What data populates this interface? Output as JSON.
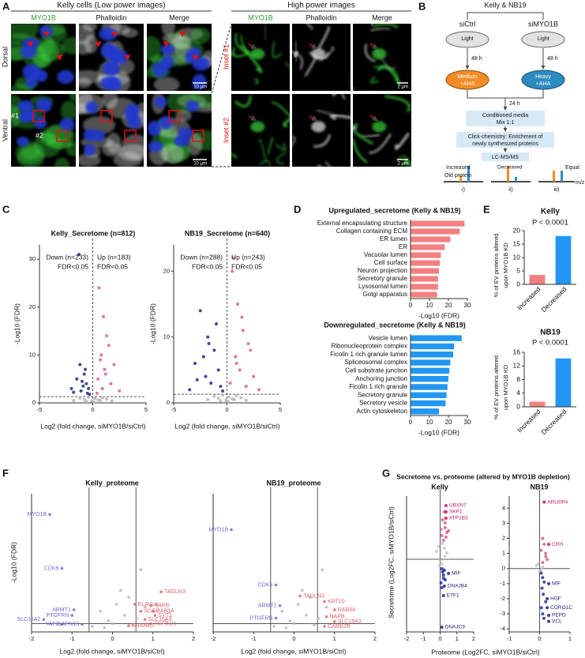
{
  "panel_labels": [
    "A",
    "B",
    "C",
    "D",
    "E",
    "F",
    "G"
  ],
  "panel_a": {
    "title_low": "Kelly cells (Low power images)",
    "title_high": "High power images",
    "columns": [
      "MYO1B",
      "Phalloidin",
      "Merge"
    ],
    "rows": [
      "Dorsal",
      "Ventral"
    ],
    "insets": [
      "Inset #1",
      "Inset #2"
    ],
    "markers": [
      "#1",
      "#2"
    ],
    "scale_low": "10 μm",
    "scale_high": "2 μm"
  },
  "panel_b": {
    "cells": "Kelly & NB19",
    "conditions": [
      "siCtrl",
      "siMYO1B"
    ],
    "light": "Light",
    "time_1": "48 h",
    "medium": [
      "Medium",
      "+AHA"
    ],
    "heavy": [
      "Heavy",
      "+AHA"
    ],
    "time_2": "24 h",
    "media": [
      "Conditioned media",
      "Mix 1:1"
    ],
    "click": [
      "Click-chemistry: Enrichment of",
      "newly synthesized proteins"
    ],
    "ms": "LC-MS/MS",
    "increased": "Increased",
    "old_protein": "Old protein",
    "decreased": "Decreased",
    "equal": "Equal",
    "mz": "m/z",
    "cases": [
      "i)",
      "ii)",
      "iii)"
    ]
  },
  "panel_g": {
    "title": "Secretome vs. proteome (altered by MYO1B depletion)",
    "xlabel": "Proteome (Log2FC, siMYO1B/siCtrl)",
    "ylabel": "Secretome (Log2FC, siMYO1B/siCtrl)"
  },
  "chart_data": [
    {
      "type": "scatter",
      "title": "Kelly_Secretome (n=812)",
      "xlabel": "Log2 (fold change, siMYO1B/siCtrl)",
      "ylabel": "-Log10 (FDR)",
      "annotations": [
        "Down (n=233)",
        "FDR<0.05",
        "Up (n=183)",
        "FDR<0.05"
      ],
      "xlim": [
        -5,
        5
      ],
      "xticks": [
        -5,
        0,
        5
      ],
      "ylim": [
        0,
        33
      ],
      "yticks": [
        0,
        10,
        20,
        30
      ],
      "hlines": [
        1.3
      ],
      "vlines": [
        0
      ],
      "line_style": "dashed",
      "series": [
        {
          "color": "#b5b5b5",
          "x": [
            -1.2,
            -0.8,
            -0.4,
            -0.1,
            0.2,
            0.5,
            0.9,
            1.3,
            -1.8,
            1.8,
            0.1,
            -0.6,
            0.7
          ],
          "values": [
            1.0,
            0.7,
            1.2,
            0.4,
            0.9,
            0.6,
            1.1,
            0.8,
            0.5,
            0.4,
            0.2,
            0.3,
            0.5
          ]
        },
        {
          "color": "#1f2a80",
          "x": [
            -1.3,
            -1.2,
            -0.8,
            -1.5,
            -0.6,
            -2.0,
            -0.9,
            -1.1,
            -0.5,
            -0.7,
            -1.8,
            -0.4,
            -1.0,
            -0.3
          ],
          "values": [
            31,
            8,
            6,
            5,
            4,
            3,
            3.5,
            2.5,
            2,
            7,
            2.2,
            3,
            4.5,
            1.8
          ]
        },
        {
          "color": "#d6608a",
          "x": [
            0.6,
            1.0,
            1.5,
            0.8,
            2.0,
            1.2,
            0.5,
            1.7,
            0.9,
            2.5,
            1.3,
            0.4,
            1.1,
            0.7
          ],
          "values": [
            24,
            18,
            12,
            10,
            8,
            6,
            5,
            4,
            3,
            2.5,
            14,
            2,
            7,
            9
          ]
        }
      ]
    },
    {
      "type": "scatter",
      "title": "NB19_Secretome (n=640)",
      "xlabel": "Log2 (fold change, siMYO1B/siCtrl)",
      "ylabel": "-Log10 (FDR)",
      "annotations": [
        "Down (n=288)",
        "FDR<0.05",
        "Up (n=243)",
        "FDR<0.05"
      ],
      "xlim": [
        -5,
        5
      ],
      "xticks": [
        -5,
        0,
        5
      ],
      "ylim": [
        0,
        24
      ],
      "yticks": [
        0,
        10,
        20
      ],
      "hlines": [
        1.3
      ],
      "vlines": [
        0
      ],
      "line_style": "dashed",
      "series": [
        {
          "color": "#b5b5b5",
          "x": [
            -1.2,
            -0.8,
            -0.4,
            -0.1,
            0.2,
            0.5,
            0.9,
            1.3,
            -1.8,
            1.8,
            0.1,
            -0.6,
            0.7
          ],
          "values": [
            1.0,
            0.7,
            1.2,
            0.4,
            0.9,
            0.6,
            1.1,
            0.8,
            0.5,
            0.4,
            0.2,
            0.3,
            0.5
          ]
        },
        {
          "color": "#1f2a80",
          "x": [
            -2.5,
            -1.8,
            -1.2,
            -3,
            -0.8,
            -2,
            -1.5,
            -0.6,
            -3.5,
            -1,
            -2.2,
            -0.4,
            -1.7,
            -2.8
          ],
          "values": [
            14,
            10,
            8,
            6,
            5,
            4,
            3,
            2.5,
            2,
            12,
            7,
            1.8,
            9,
            3.5
          ]
        },
        {
          "color": "#d6608a",
          "x": [
            0.5,
            1,
            1.5,
            2,
            0.8,
            1.2,
            2.5,
            0.3,
            1.8,
            3,
            0.6,
            1.4,
            0.9,
            2.2
          ],
          "values": [
            20,
            15,
            11,
            9,
            7,
            5,
            4,
            3,
            2.5,
            2,
            22,
            13,
            6,
            8
          ]
        }
      ]
    },
    {
      "type": "barh",
      "title": "Upregulated_secretome (Kelly & NB19)",
      "xlabel": "-Log10 (FDR)",
      "categories": [
        "External encapsulating structure",
        "Collagen containing ECM",
        "ER lumen",
        "ER",
        "Vacuolar lumen",
        "Cell surface",
        "Neuron projection",
        "Secretory granule",
        "Lysosomal lumen",
        "Golgi apparatus"
      ],
      "values": [
        28.5,
        26,
        21,
        18,
        16,
        15.5,
        15,
        14.5,
        14.5,
        14
      ],
      "color": "#f28080",
      "xlim": [
        0,
        30
      ],
      "xticks": [
        0,
        10,
        20,
        30
      ]
    },
    {
      "type": "barh",
      "title": "Downregulated_secretome (Kelly & NB19)",
      "xlabel": "-Log10 (FDR)",
      "categories": [
        "Vesicle lumen",
        "Ribonucleoprotein complex",
        "Ficolin 1 rich granule lumen",
        "Spliceosomal complex",
        "Cell substrate junction",
        "Anchoring junction",
        "Ficolin 1 rich granule",
        "Secretory granule",
        "Secretory vesicle",
        "Actin cytoskeleton"
      ],
      "values": [
        27,
        23,
        22.5,
        21,
        20.5,
        20,
        19.5,
        19,
        18.5,
        15
      ],
      "color": "#2196f3",
      "xlim": [
        0,
        30
      ],
      "xticks": [
        0,
        10,
        20,
        30
      ]
    },
    {
      "type": "bar",
      "title": "Kelly",
      "annotations": [
        "P < 0.0001"
      ],
      "ylabel": [
        "% of EV proteins altered",
        "upon MYO1B KD"
      ],
      "categories": [
        "Increased",
        "Decreased"
      ],
      "values": [
        3.5,
        18
      ],
      "colors": [
        "#f28080",
        "#2196f3"
      ],
      "ylim": [
        0,
        20
      ],
      "yticks": [
        0,
        5,
        10,
        15,
        20
      ]
    },
    {
      "type": "bar",
      "title": "NB19",
      "annotations": [
        "P < 0.0001"
      ],
      "ylabel": [
        "% of EV proteins altered",
        "upon MYO1B KD"
      ],
      "categories": [
        "Increased",
        "Decreased"
      ],
      "values": [
        1.5,
        14.2
      ],
      "colors": [
        "#f28080",
        "#2196f3"
      ],
      "ylim": [
        0,
        16
      ],
      "yticks": [
        0,
        4,
        8,
        12,
        16
      ]
    },
    {
      "type": "scatter",
      "title": "Kelly_proteome",
      "xlabel": "Log2 (fold change, siMYO1B/siCtrl)",
      "ylabel": "-Log10 (FDR)",
      "xlim": [
        -2,
        2
      ],
      "xticks": [
        -2,
        -1,
        0,
        1,
        2
      ],
      "ylim": [
        0,
        10
      ],
      "hlines": [
        0.6
      ],
      "vlines": [
        -0.58,
        0.58
      ],
      "line_style": "solid",
      "series": [
        {
          "color": "#b5b5b5",
          "x": [
            -0.3,
            -0.1,
            0.1,
            0.3,
            0.5,
            -0.5,
            0.2,
            0.4,
            0.6,
            0.8,
            -0.2,
            0.0,
            0.7
          ],
          "values": [
            1.5,
            0.8,
            2.0,
            1.2,
            0.5,
            0.4,
            3.0,
            2.5,
            1.0,
            1.8,
            0.3,
            0.6,
            4.5
          ]
        },
        {
          "color": "#6b6bd6",
          "x": [
            -1.55,
            -1.25,
            -0.95,
            -1.0,
            -1.7,
            -1.25,
            -0.75
          ],
          "values": [
            8.5,
            4.6,
            1.6,
            1.2,
            0.9,
            0.55,
            0.55
          ],
          "labels": [
            "MYO1B",
            "CDK6",
            "ARMT1",
            "PTGFRN",
            "SLC35A2",
            "YAF2",
            "CAPN13"
          ]
        },
        {
          "color": "#e0606a",
          "x": [
            1.2,
            0.55,
            0.95,
            1.0,
            0.7,
            1.05,
            0.8,
            0.95,
            0.4
          ],
          "values": [
            2.9,
            2.0,
            1.9,
            1.5,
            1.5,
            1.2,
            0.9,
            0.6,
            0.45
          ],
          "labels": [
            "TAGLN3",
            "ELAVL4",
            "NAPB",
            "RAB3A",
            "SCG2",
            "SYT1",
            "SLC16A3",
            "TGFB1I1",
            "SHANK2"
          ]
        }
      ]
    },
    {
      "type": "scatter",
      "title": "NB19_proteome",
      "xlabel": "Log2 (fold change, siMYO1B/siCtrl)",
      "xlim": [
        -2,
        2
      ],
      "xticks": [
        -2,
        -1,
        0,
        1,
        2
      ],
      "ylim": [
        0,
        10
      ],
      "hlines": [
        0.6
      ],
      "vlines": [
        -0.58,
        0.58
      ],
      "line_style": "solid",
      "series": [
        {
          "color": "#b5b5b5",
          "x": [
            -0.3,
            -0.1,
            0.1,
            0.3,
            0.5,
            -0.5,
            0.2,
            0.4,
            0.6,
            0.8,
            -0.2,
            0.0,
            0.7
          ],
          "values": [
            1.5,
            0.8,
            2.0,
            1.2,
            0.5,
            0.4,
            3.0,
            2.5,
            1.0,
            1.8,
            0.3,
            0.6,
            4.5
          ]
        },
        {
          "color": "#6b6bd6",
          "x": [
            -1.55,
            -0.45,
            -0.35,
            -0.45
          ],
          "values": [
            7.4,
            3.4,
            1.9,
            1.0
          ],
          "labels": [
            "MYO1B",
            "CDK6",
            "ARMT1",
            "PTGFRN"
          ]
        },
        {
          "color": "#e0606a",
          "x": [
            0.15,
            0.75,
            1.0,
            0.8,
            1.0,
            0.75
          ],
          "values": [
            2.6,
            2.2,
            1.6,
            1.1,
            0.75,
            0.4
          ],
          "labels": [
            "TAGLN3",
            "KRT10",
            "RAB3A",
            "NAPB",
            "SLC16A3",
            "CAMK2B"
          ]
        }
      ]
    },
    {
      "type": "scatter",
      "title": "Kelly",
      "xlim": [
        -2,
        2
      ],
      "xticks": [
        -2,
        -1,
        0,
        1,
        2
      ],
      "ylim": [
        -4.6,
        4
      ],
      "hlines": [
        0
      ],
      "vlines": [
        0
      ],
      "line_style": "solid",
      "series": [
        {
          "color": "#c8c8c8",
          "x": [
            -0.2,
            0.1,
            0.3,
            -0.1,
            0.2,
            0.4,
            0.0,
            0.15,
            -0.05,
            0.25
          ],
          "values": [
            0.5,
            -0.3,
            0.2,
            0.8,
            -0.6,
            0.4,
            -0.1,
            1.0,
            -0.4,
            0.7
          ]
        },
        {
          "color": "#d6608a",
          "x": [
            0.1,
            0.3,
            0.2,
            0.4,
            0.15,
            0.35,
            0.05,
            0.25,
            0.3,
            0.5
          ],
          "values": [
            1.5,
            2.0,
            1.2,
            1.7,
            2.5,
            1.4,
            1.9,
            3.0,
            2.3,
            1.8
          ]
        },
        {
          "color": "#c2185b",
          "x": [
            0.35,
            0.35,
            0.35
          ],
          "values": [
            3.4,
            3.0,
            2.6
          ],
          "labels": [
            "UBXN7",
            "SKP1",
            "ATP1B3"
          ]
        },
        {
          "color": "#2430a0",
          "x": [
            0.1,
            0.2,
            0.3,
            0.15,
            0.05,
            0.25,
            0.2,
            0.1
          ],
          "values": [
            -0.6,
            -1.0,
            -1.3,
            -0.8,
            -1.5,
            -0.7,
            -1.2,
            -1.8
          ]
        },
        {
          "color": "#1a237e",
          "x": [
            0.5,
            0.25,
            0.2,
            0.1
          ],
          "values": [
            -0.9,
            -1.7,
            -2.3,
            -4.3
          ],
          "labels": [
            "MIF",
            "DNAJB4",
            "ETF1",
            "DNAJC9"
          ]
        }
      ]
    },
    {
      "type": "scatter",
      "title": "NB19",
      "xlim": [
        -1,
        1
      ],
      "xticks": [
        -1,
        0,
        1
      ],
      "ylim": [
        -4.2,
        4.8
      ],
      "yticks": [
        -4,
        -3,
        -2,
        -1,
        0,
        1,
        2,
        3,
        4
      ],
      "hlines": [
        0
      ],
      "vlines": [
        0
      ],
      "line_style": "solid",
      "series": [
        {
          "color": "#c8c8c8",
          "x": [
            -0.1,
            0,
            0.1,
            -0.05,
            0.05
          ],
          "values": [
            0.2,
            -0.2,
            0.1,
            0.3,
            -0.1
          ]
        },
        {
          "color": "#d6608a",
          "x": [
            0.1,
            0.2,
            0.05,
            0.15,
            0.25,
            0.1,
            0.2
          ],
          "values": [
            0.4,
            0.8,
            1.2,
            1.6,
            0.6,
            2.0,
            1.0
          ]
        },
        {
          "color": "#c2185b",
          "x": [
            0.15,
            0.3
          ],
          "values": [
            4.4,
            1.6
          ],
          "labels": [
            "ARL6IP4",
            "CRH"
          ]
        },
        {
          "color": "#2430a0",
          "x": [
            0.05,
            0.1,
            0.15,
            0.08,
            0.12,
            0.2,
            0.06,
            0.1,
            0.14
          ],
          "values": [
            -0.3,
            -0.6,
            -0.9,
            -1.3,
            -1.7,
            -2.2,
            -2.6,
            -3.0,
            -3.3
          ]
        },
        {
          "color": "#1a237e",
          "x": [
            0.3,
            0.25,
            0.25,
            0.3,
            0.3
          ],
          "values": [
            -1.0,
            -2.0,
            -2.6,
            -3.1,
            -3.5
          ],
          "labels": [
            "MIF",
            "HGF",
            "CORO1C",
            "PEPD",
            "VCL"
          ]
        }
      ]
    }
  ]
}
